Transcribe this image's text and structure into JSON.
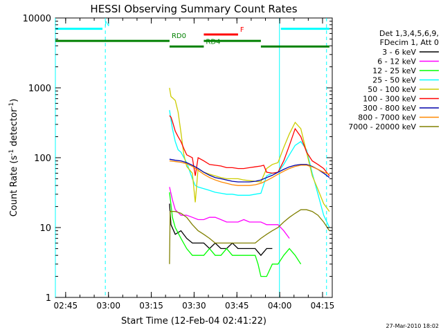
{
  "chart_data": {
    "type": "line",
    "title": "HESSI Observing Summary Count Rates",
    "xlabel": "Start Time (12-Feb-04 02:41:22)",
    "ylabel_main": "Count Rate (s",
    "ylabel_sup1": "-1",
    "ylabel_mid": " detector",
    "ylabel_sup2": "-1",
    "ylabel_end": ")",
    "x_unit": "minutes since 02:41:22",
    "x_range": [
      0,
      97
    ],
    "ylim": [
      1,
      10000
    ],
    "y_scale": "log",
    "x_ticks": [
      {
        "x": 3.6,
        "label": "02:45"
      },
      {
        "x": 18.6,
        "label": "03:00"
      },
      {
        "x": 33.6,
        "label": "03:15"
      },
      {
        "x": 48.6,
        "label": "03:30"
      },
      {
        "x": 63.6,
        "label": "03:45"
      },
      {
        "x": 78.6,
        "label": "04:00"
      },
      {
        "x": 93.6,
        "label": "04:15"
      }
    ],
    "y_ticks": [
      {
        "y": 1,
        "label": "1"
      },
      {
        "y": 10,
        "label": "10"
      },
      {
        "y": 100,
        "label": "100"
      },
      {
        "y": 1000,
        "label": "1000"
      },
      {
        "y": 10000,
        "label": "10000"
      }
    ],
    "legend_header": [
      "Det 1,3,4,5,6,9,",
      "FDecim 1, Att 0"
    ],
    "legend_placement": "top-right, outside plot",
    "series": [
      {
        "name": "3 - 6 keV",
        "color": "#000000",
        "x": [
          40,
          40.5,
          42,
          44,
          46,
          48,
          50,
          52,
          54,
          56,
          58,
          60,
          62,
          64,
          66,
          68,
          70,
          72,
          74,
          76
        ],
        "y": [
          22,
          11,
          8,
          9,
          7,
          6,
          6,
          6,
          5,
          6,
          5,
          5,
          6,
          5,
          5,
          5,
          5,
          4,
          5,
          5
        ]
      },
      {
        "name": "6 - 12 keV",
        "color": "#ff00ff",
        "x": [
          40,
          41,
          42,
          44,
          46,
          48,
          50,
          52,
          54,
          56,
          58,
          60,
          62,
          64,
          66,
          68,
          70,
          72,
          74,
          76,
          78,
          80,
          82
        ],
        "y": [
          38,
          25,
          18,
          15,
          15,
          14,
          13,
          13,
          14,
          14,
          13,
          12,
          12,
          12,
          13,
          12,
          12,
          12,
          11,
          11,
          11,
          9,
          7
        ]
      },
      {
        "name": "12 - 25 keV",
        "color": "#00ff00",
        "x": [
          40,
          41,
          42,
          44,
          46,
          48,
          50,
          52,
          54,
          56,
          58,
          60,
          62,
          64,
          66,
          68,
          70,
          71,
          72,
          74,
          76,
          78,
          80,
          82,
          84,
          86
        ],
        "y": [
          32,
          14,
          10,
          7,
          5,
          4,
          4,
          4,
          5,
          4,
          4,
          5,
          4,
          4,
          4,
          4,
          4,
          3,
          2,
          2,
          3,
          3,
          4,
          5,
          4,
          3
        ]
      },
      {
        "name": "25 - 50 keV",
        "color": "#00ffff",
        "x": [
          40,
          40.5,
          41,
          42,
          43,
          44,
          46,
          48,
          49,
          50,
          52,
          54,
          56,
          58,
          60,
          62,
          64,
          66,
          68,
          70,
          72,
          74,
          76,
          78,
          80,
          82,
          84,
          86,
          88,
          90,
          92,
          94,
          96
        ],
        "y": [
          480,
          350,
          260,
          170,
          130,
          120,
          85,
          50,
          40,
          38,
          36,
          34,
          32,
          31,
          30,
          30,
          29,
          29,
          29,
          30,
          31,
          55,
          60,
          62,
          80,
          110,
          150,
          170,
          130,
          60,
          30,
          15,
          10
        ]
      },
      {
        "name": "50 - 100 keV",
        "color": "#cccc00",
        "x": [
          40,
          40.5,
          41,
          42,
          43,
          44,
          45,
          46,
          48,
          49,
          50,
          52,
          54,
          56,
          58,
          60,
          62,
          64,
          66,
          68,
          70,
          72,
          74,
          76,
          78,
          80,
          82,
          84,
          86,
          88,
          90,
          92,
          94,
          96
        ],
        "y": [
          1000,
          750,
          720,
          660,
          450,
          230,
          110,
          75,
          60,
          23,
          70,
          62,
          58,
          55,
          52,
          50,
          50,
          50,
          48,
          47,
          46,
          45,
          70,
          80,
          85,
          140,
          220,
          320,
          260,
          120,
          55,
          35,
          22,
          17
        ]
      },
      {
        "name": "100 - 300 keV",
        "color": "#ff0000",
        "x": [
          40,
          40.5,
          41,
          42,
          43,
          44,
          45,
          46,
          48,
          49,
          50,
          52,
          54,
          56,
          58,
          60,
          62,
          64,
          66,
          68,
          70,
          72,
          73,
          74,
          76,
          78,
          80,
          82,
          84,
          86,
          88,
          90,
          92,
          94,
          96
        ],
        "y": [
          400,
          380,
          330,
          240,
          200,
          170,
          135,
          110,
          100,
          55,
          100,
          90,
          80,
          78,
          76,
          72,
          72,
          70,
          70,
          72,
          74,
          76,
          78,
          62,
          60,
          62,
          90,
          150,
          260,
          200,
          120,
          90,
          80,
          70,
          55
        ]
      },
      {
        "name": "300 - 800 keV",
        "color": "#0000aa",
        "x": [
          40,
          42,
          44,
          46,
          48,
          50,
          52,
          54,
          56,
          58,
          60,
          62,
          64,
          66,
          68,
          70,
          72,
          74,
          76,
          78,
          80,
          82,
          84,
          86,
          88,
          90,
          92,
          94,
          96
        ],
        "y": [
          95,
          92,
          90,
          85,
          78,
          70,
          62,
          56,
          52,
          50,
          48,
          46,
          45,
          45,
          45,
          46,
          48,
          52,
          56,
          62,
          68,
          74,
          78,
          80,
          80,
          75,
          68,
          60,
          52
        ]
      },
      {
        "name": "800 - 7000 keV",
        "color": "#ff8800",
        "x": [
          40,
          42,
          44,
          46,
          48,
          50,
          52,
          54,
          56,
          58,
          60,
          62,
          64,
          66,
          68,
          70,
          72,
          74,
          76,
          78,
          80,
          82,
          84,
          86,
          88,
          90,
          92,
          94,
          96
        ],
        "y": [
          90,
          88,
          86,
          82,
          75,
          66,
          58,
          52,
          48,
          45,
          43,
          41,
          40,
          40,
          40,
          41,
          43,
          47,
          52,
          58,
          64,
          70,
          75,
          78,
          78,
          74,
          68,
          62,
          58
        ]
      },
      {
        "name": "7000 - 20000 keV",
        "color": "#808000",
        "x": [
          40,
          40.2,
          41,
          42,
          44,
          46,
          48,
          50,
          52,
          54,
          56,
          58,
          60,
          62,
          64,
          66,
          68,
          70,
          72,
          74,
          76,
          78,
          80,
          82,
          84,
          86,
          88,
          90,
          92,
          94,
          96
        ],
        "y": [
          3,
          17,
          17,
          17,
          16,
          14,
          11,
          9,
          8,
          7,
          6,
          6,
          6,
          6,
          6,
          6,
          6,
          6,
          7,
          8,
          9,
          10,
          12,
          14,
          16,
          18,
          18,
          17,
          15,
          12,
          9
        ]
      }
    ],
    "flag_bars": [
      {
        "label": "N",
        "color": "#00ffff",
        "y": 7000,
        "segments": [
          [
            0,
            16.5
          ],
          [
            79,
            96
          ]
        ]
      },
      {
        "label": "F",
        "color": "#ff0000",
        "y": 5800,
        "segments": [
          [
            52,
            64
          ]
        ]
      },
      {
        "label": "RD0",
        "color": "#008000",
        "y": 4700,
        "segments": [
          [
            0,
            40
          ],
          [
            52,
            72
          ]
        ]
      },
      {
        "label": "RD4",
        "color": "#008000",
        "y": 3900,
        "segments": [
          [
            40,
            52
          ],
          [
            72,
            96
          ]
        ]
      }
    ],
    "vertical_markers": [
      {
        "x": 0,
        "style": "solid",
        "color": "#00ffff"
      },
      {
        "x": 17.5,
        "style": "dashed",
        "color": "#00ffff"
      },
      {
        "x": 78.5,
        "style": "solid",
        "color": "#00ffff"
      },
      {
        "x": 95,
        "style": "dashed",
        "color": "#00ffff"
      }
    ],
    "footer_timestamp": "27-Mar-2010 18:02"
  }
}
